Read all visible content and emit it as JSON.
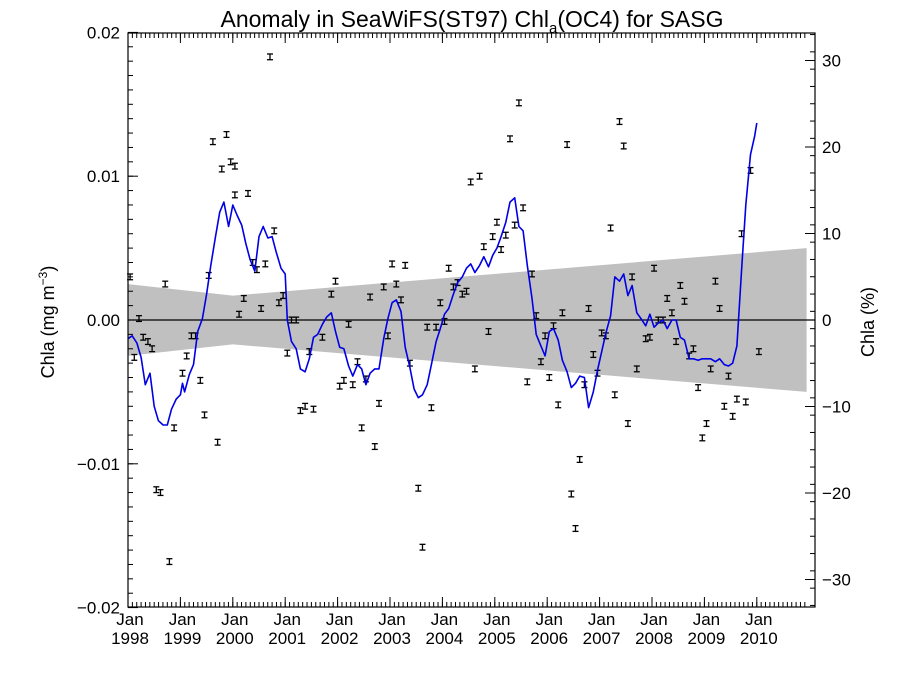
{
  "chart_data": {
    "type": "scatter",
    "title": {
      "prefix": "Anomaly in SeaWiFS(ST97) Chl",
      "subscript": "a",
      "suffix": "(OC4) for SASG"
    },
    "ylabel_left": {
      "text": "Chla (mg m",
      "superscript": "−3",
      "close": ")"
    },
    "ylabel_right": "Chla (%)",
    "x_range": [
      1998.0,
      2010.95
    ],
    "ylim_left": [
      -0.0205,
      0.0205
    ],
    "ylim_right": [
      -33,
      33
    ],
    "left_ticks": [
      {
        "value": 0.02,
        "label": "0.02"
      },
      {
        "value": 0.01,
        "label": "0.01"
      },
      {
        "value": 0.0,
        "label": "0.00"
      },
      {
        "value": -0.01,
        "label": "−0.01"
      },
      {
        "value": -0.02,
        "label": "−0.02"
      }
    ],
    "right_ticks": [
      {
        "value": 30,
        "label": "30"
      },
      {
        "value": 20,
        "label": "20"
      },
      {
        "value": 10,
        "label": "10"
      },
      {
        "value": 0,
        "label": "0"
      },
      {
        "value": -10,
        "label": "−10"
      },
      {
        "value": -20,
        "label": "−20"
      },
      {
        "value": -30,
        "label": "−30"
      }
    ],
    "x_ticks": [
      {
        "value": 1998,
        "month": "Jan",
        "year": "1998"
      },
      {
        "value": 1999,
        "month": "Jan",
        "year": "1999"
      },
      {
        "value": 2000,
        "month": "Jan",
        "year": "2000"
      },
      {
        "value": 2001,
        "month": "Jan",
        "year": "2001"
      },
      {
        "value": 2002,
        "month": "Jan",
        "year": "2002"
      },
      {
        "value": 2003,
        "month": "Jan",
        "year": "2003"
      },
      {
        "value": 2004,
        "month": "Jan",
        "year": "2004"
      },
      {
        "value": 2005,
        "month": "Jan",
        "year": "2005"
      },
      {
        "value": 2006,
        "month": "Jan",
        "year": "2006"
      },
      {
        "value": 2007,
        "month": "Jan",
        "year": "2007"
      },
      {
        "value": 2008,
        "month": "Jan",
        "year": "2008"
      },
      {
        "value": 2009,
        "month": "Jan",
        "year": "2009"
      },
      {
        "value": 2010,
        "month": "Jan",
        "year": "2010"
      }
    ],
    "zero_line": 0.0,
    "uncertainty_band": {
      "color": "#c0c0c0",
      "upper": [
        [
          1998.0,
          0.0025
        ],
        [
          2000.0,
          0.0017
        ],
        [
          2010.95,
          0.005
        ]
      ],
      "lower": [
        [
          1998.0,
          -0.0025
        ],
        [
          2000.0,
          -0.0017
        ],
        [
          2010.95,
          -0.005
        ]
      ]
    },
    "monthly_anomalies": {
      "color": "#000000",
      "error_half_width": 0.0002,
      "points": [
        [
          1998.04,
          0.003
        ],
        [
          1998.12,
          -0.0026
        ],
        [
          1998.21,
          0.0001
        ],
        [
          1998.29,
          -0.0012
        ],
        [
          1998.38,
          -0.0015
        ],
        [
          1998.46,
          -0.002
        ],
        [
          1998.54,
          -0.0118
        ],
        [
          1998.62,
          -0.012
        ],
        [
          1998.71,
          0.0025
        ],
        [
          1998.79,
          -0.0168
        ],
        [
          1998.88,
          -0.0075
        ],
        [
          1999.04,
          -0.0037
        ],
        [
          1999.12,
          -0.0025
        ],
        [
          1999.21,
          -0.0011
        ],
        [
          1999.29,
          -0.0011
        ],
        [
          1999.38,
          -0.0042
        ],
        [
          1999.46,
          -0.0066
        ],
        [
          1999.54,
          0.0031
        ],
        [
          1999.62,
          0.0124
        ],
        [
          1999.71,
          -0.0085
        ],
        [
          1999.79,
          0.0105
        ],
        [
          1999.88,
          0.0129
        ],
        [
          1999.96,
          0.011
        ],
        [
          2000.04,
          0.0107
        ],
        [
          2000.04,
          0.0087
        ],
        [
          2000.12,
          0.0004
        ],
        [
          2000.21,
          0.0015
        ],
        [
          2000.29,
          0.0088
        ],
        [
          2000.38,
          0.004
        ],
        [
          2000.46,
          0.0035
        ],
        [
          2000.54,
          0.0008
        ],
        [
          2000.62,
          0.0039
        ],
        [
          2000.71,
          0.0183
        ],
        [
          2000.79,
          0.0062
        ],
        [
          2000.88,
          0.0012
        ],
        [
          2000.96,
          0.0017
        ],
        [
          2001.04,
          -0.0023
        ],
        [
          2001.12,
          0.0
        ],
        [
          2001.21,
          0.0
        ],
        [
          2001.29,
          -0.0063
        ],
        [
          2001.38,
          -0.006
        ],
        [
          2001.46,
          -0.0022
        ],
        [
          2001.54,
          -0.0062
        ],
        [
          2001.71,
          -0.0012
        ],
        [
          2001.88,
          0.0018
        ],
        [
          2001.96,
          0.0027
        ],
        [
          2002.04,
          -0.0046
        ],
        [
          2002.12,
          -0.0042
        ],
        [
          2002.21,
          -0.0003
        ],
        [
          2002.29,
          -0.0045
        ],
        [
          2002.38,
          -0.0029
        ],
        [
          2002.46,
          -0.0075
        ],
        [
          2002.54,
          -0.0041
        ],
        [
          2002.62,
          0.0016
        ],
        [
          2002.71,
          -0.0088
        ],
        [
          2002.79,
          -0.0058
        ],
        [
          2002.88,
          0.0023
        ],
        [
          2002.96,
          -0.0011
        ],
        [
          2003.04,
          0.0039
        ],
        [
          2003.12,
          0.0025
        ],
        [
          2003.21,
          0.0014
        ],
        [
          2003.29,
          0.0038
        ],
        [
          2003.38,
          -0.003
        ],
        [
          2003.54,
          -0.0117
        ],
        [
          2003.62,
          -0.0158
        ],
        [
          2003.71,
          -0.0005
        ],
        [
          2003.79,
          -0.0061
        ],
        [
          2003.88,
          -0.0005
        ],
        [
          2003.96,
          0.0012
        ],
        [
          2004.04,
          -0.0001
        ],
        [
          2004.12,
          0.0036
        ],
        [
          2004.21,
          0.0023
        ],
        [
          2004.29,
          0.0026
        ],
        [
          2004.38,
          0.0018
        ],
        [
          2004.46,
          0.002
        ],
        [
          2004.54,
          0.0096
        ],
        [
          2004.62,
          -0.0034
        ],
        [
          2004.71,
          0.01
        ],
        [
          2004.79,
          0.0051
        ],
        [
          2004.88,
          -0.0008
        ],
        [
          2004.96,
          0.0058
        ],
        [
          2005.04,
          0.0068
        ],
        [
          2005.12,
          0.0049
        ],
        [
          2005.21,
          0.0059
        ],
        [
          2005.29,
          0.0126
        ],
        [
          2005.38,
          0.0066
        ],
        [
          2005.46,
          0.0151
        ],
        [
          2005.54,
          0.0078
        ],
        [
          2005.62,
          -0.0043
        ],
        [
          2005.71,
          0.0032
        ],
        [
          2005.79,
          0.0003
        ],
        [
          2005.88,
          -0.0029
        ],
        [
          2005.96,
          -0.0011
        ],
        [
          2006.04,
          -0.004
        ],
        [
          2006.12,
          -0.0004
        ],
        [
          2006.21,
          -0.0059
        ],
        [
          2006.29,
          0.0005
        ],
        [
          2006.38,
          0.0122
        ],
        [
          2006.46,
          -0.0121
        ],
        [
          2006.54,
          -0.0145
        ],
        [
          2006.62,
          -0.0097
        ],
        [
          2006.71,
          -0.0045
        ],
        [
          2006.79,
          0.0008
        ],
        [
          2006.88,
          -0.0024
        ],
        [
          2006.96,
          -0.0037
        ],
        [
          2007.04,
          -0.0009
        ],
        [
          2007.12,
          -0.0011
        ],
        [
          2007.21,
          0.0064
        ],
        [
          2007.29,
          -0.0052
        ],
        [
          2007.38,
          0.0138
        ],
        [
          2007.46,
          0.0121
        ],
        [
          2007.54,
          -0.0072
        ],
        [
          2007.62,
          0.003
        ],
        [
          2007.71,
          -0.0034
        ],
        [
          2007.88,
          -0.0013
        ],
        [
          2007.96,
          -0.0012
        ],
        [
          2008.04,
          0.0036
        ],
        [
          2008.12,
          0.0
        ],
        [
          2008.21,
          0.0
        ],
        [
          2008.29,
          0.0015
        ],
        [
          2008.38,
          0.0005
        ],
        [
          2008.46,
          -0.0015
        ],
        [
          2008.54,
          0.0024
        ],
        [
          2008.62,
          0.0013
        ],
        [
          2008.71,
          -0.0025
        ],
        [
          2008.79,
          -0.002
        ],
        [
          2008.88,
          -0.0047
        ],
        [
          2008.96,
          -0.0082
        ],
        [
          2009.04,
          -0.0072
        ],
        [
          2009.12,
          -0.0034
        ],
        [
          2009.21,
          0.0027
        ],
        [
          2009.29,
          0.0008
        ],
        [
          2009.38,
          -0.006
        ],
        [
          2009.46,
          -0.0039
        ],
        [
          2009.54,
          -0.0067
        ],
        [
          2009.62,
          -0.0055
        ],
        [
          2009.71,
          0.006
        ],
        [
          2009.79,
          -0.0057
        ],
        [
          2009.88,
          0.0104
        ],
        [
          2010.04,
          -0.0022
        ]
      ]
    },
    "smoothed_series": {
      "color": "#0000e6",
      "points": [
        [
          1998.0,
          -0.0013
        ],
        [
          1998.08,
          -0.0011
        ],
        [
          1998.17,
          -0.0016
        ],
        [
          1998.25,
          -0.0026
        ],
        [
          1998.33,
          -0.0045
        ],
        [
          1998.42,
          -0.0037
        ],
        [
          1998.5,
          -0.006
        ],
        [
          1998.58,
          -0.007
        ],
        [
          1998.67,
          -0.0073
        ],
        [
          1998.75,
          -0.0073
        ],
        [
          1998.83,
          -0.0062
        ],
        [
          1998.92,
          -0.0055
        ],
        [
          1999.0,
          -0.0052
        ],
        [
          1999.04,
          -0.0044
        ],
        [
          1999.08,
          -0.005
        ],
        [
          1999.17,
          -0.0038
        ],
        [
          1999.25,
          -0.0031
        ],
        [
          1999.33,
          -0.0008
        ],
        [
          1999.42,
          0.0001
        ],
        [
          1999.5,
          0.0018
        ],
        [
          1999.58,
          0.0038
        ],
        [
          1999.67,
          0.0058
        ],
        [
          1999.75,
          0.0075
        ],
        [
          1999.83,
          0.0082
        ],
        [
          1999.92,
          0.0065
        ],
        [
          2000.0,
          0.008
        ],
        [
          2000.08,
          0.0073
        ],
        [
          2000.17,
          0.0066
        ],
        [
          2000.25,
          0.0053
        ],
        [
          2000.33,
          0.0042
        ],
        [
          2000.42,
          0.0034
        ],
        [
          2000.5,
          0.0058
        ],
        [
          2000.58,
          0.0065
        ],
        [
          2000.67,
          0.0057
        ],
        [
          2000.75,
          0.0058
        ],
        [
          2000.83,
          0.0047
        ],
        [
          2000.92,
          0.0036
        ],
        [
          2001.0,
          0.0032
        ],
        [
          2001.04,
          0.0
        ],
        [
          2001.12,
          -0.0015
        ],
        [
          2001.21,
          -0.002
        ],
        [
          2001.29,
          -0.0034
        ],
        [
          2001.38,
          -0.0036
        ],
        [
          2001.46,
          -0.0027
        ],
        [
          2001.54,
          -0.0012
        ],
        [
          2001.62,
          -0.001
        ],
        [
          2001.71,
          -0.0003
        ],
        [
          2001.79,
          0.0002
        ],
        [
          2001.88,
          0.0005
        ],
        [
          2001.96,
          -0.0008
        ],
        [
          2002.04,
          -0.0019
        ],
        [
          2002.12,
          -0.002
        ],
        [
          2002.21,
          -0.0032
        ],
        [
          2002.29,
          -0.0039
        ],
        [
          2002.38,
          -0.0031
        ],
        [
          2002.46,
          -0.0034
        ],
        [
          2002.54,
          -0.0045
        ],
        [
          2002.62,
          -0.0037
        ],
        [
          2002.71,
          -0.0034
        ],
        [
          2002.79,
          -0.0034
        ],
        [
          2002.88,
          -0.0013
        ],
        [
          2002.96,
          0.0001
        ],
        [
          2003.04,
          0.0012
        ],
        [
          2003.12,
          0.0014
        ],
        [
          2003.21,
          0.0006
        ],
        [
          2003.29,
          -0.0019
        ],
        [
          2003.38,
          -0.0033
        ],
        [
          2003.46,
          -0.0048
        ],
        [
          2003.54,
          -0.0054
        ],
        [
          2003.62,
          -0.0052
        ],
        [
          2003.71,
          -0.0045
        ],
        [
          2003.79,
          -0.0031
        ],
        [
          2003.88,
          -0.0015
        ],
        [
          2003.96,
          -0.0006
        ],
        [
          2004.04,
          0.0004
        ],
        [
          2004.12,
          0.0008
        ],
        [
          2004.21,
          0.0018
        ],
        [
          2004.29,
          0.0026
        ],
        [
          2004.38,
          0.003
        ],
        [
          2004.46,
          0.0036
        ],
        [
          2004.54,
          0.0039
        ],
        [
          2004.62,
          0.0033
        ],
        [
          2004.71,
          0.0038
        ],
        [
          2004.79,
          0.0044
        ],
        [
          2004.88,
          0.0037
        ],
        [
          2004.96,
          0.0045
        ],
        [
          2005.04,
          0.005
        ],
        [
          2005.12,
          0.0058
        ],
        [
          2005.21,
          0.0068
        ],
        [
          2005.29,
          0.0082
        ],
        [
          2005.38,
          0.0085
        ],
        [
          2005.46,
          0.0065
        ],
        [
          2005.54,
          0.0062
        ],
        [
          2005.62,
          0.0038
        ],
        [
          2005.71,
          0.0015
        ],
        [
          2005.79,
          -0.001
        ],
        [
          2005.88,
          -0.0018
        ],
        [
          2005.96,
          -0.0025
        ],
        [
          2006.04,
          -0.0008
        ],
        [
          2006.12,
          -0.0006
        ],
        [
          2006.21,
          -0.0014
        ],
        [
          2006.29,
          -0.0028
        ],
        [
          2006.38,
          -0.0036
        ],
        [
          2006.46,
          -0.0047
        ],
        [
          2006.54,
          -0.0044
        ],
        [
          2006.62,
          -0.0039
        ],
        [
          2006.71,
          -0.004
        ],
        [
          2006.79,
          -0.0061
        ],
        [
          2006.88,
          -0.005
        ],
        [
          2006.96,
          -0.0035
        ],
        [
          2007.04,
          -0.0022
        ],
        [
          2007.12,
          -0.0009
        ],
        [
          2007.21,
          0.0003
        ],
        [
          2007.29,
          0.003
        ],
        [
          2007.38,
          0.0027
        ],
        [
          2007.46,
          0.0032
        ],
        [
          2007.54,
          0.0017
        ],
        [
          2007.62,
          0.0024
        ],
        [
          2007.71,
          0.0005
        ],
        [
          2007.79,
          0.0001
        ],
        [
          2007.88,
          -0.0004
        ],
        [
          2007.96,
          0.0004
        ],
        [
          2008.04,
          -0.0005
        ],
        [
          2008.12,
          -0.0002
        ],
        [
          2008.21,
          0.0
        ],
        [
          2008.29,
          -0.0006
        ],
        [
          2008.38,
          0.0
        ],
        [
          2008.46,
          0.0
        ],
        [
          2008.54,
          -0.0012
        ],
        [
          2008.62,
          -0.0014
        ],
        [
          2008.71,
          -0.0027
        ],
        [
          2008.79,
          -0.0027
        ],
        [
          2008.88,
          -0.0028
        ],
        [
          2008.96,
          -0.0027
        ],
        [
          2009.04,
          -0.0027
        ],
        [
          2009.12,
          -0.0027
        ],
        [
          2009.21,
          -0.0029
        ],
        [
          2009.29,
          -0.0027
        ],
        [
          2009.38,
          -0.0031
        ],
        [
          2009.46,
          -0.0032
        ],
        [
          2009.54,
          -0.003
        ],
        [
          2009.62,
          -0.0018
        ],
        [
          2009.71,
          0.0035
        ],
        [
          2009.79,
          0.008
        ],
        [
          2009.88,
          0.0115
        ],
        [
          2009.96,
          0.0128
        ],
        [
          2010.0,
          0.0137
        ]
      ]
    }
  }
}
